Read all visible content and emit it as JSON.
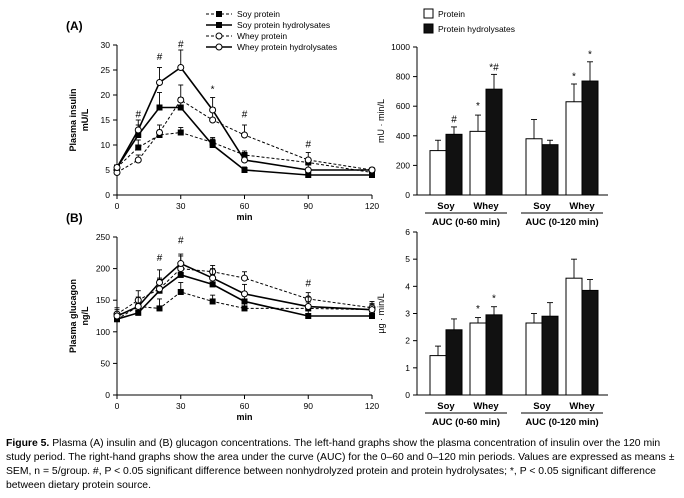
{
  "caption": {
    "figure_label": "Figure 5.",
    "text": "Plasma (A) insulin and (B) glucagon concentrations. The left-hand graphs show the plasma concentration of insulin over the 120 min study period. The right-hand graphs show the area under the curve (AUC) for the 0–60 and 0–120 min periods. Values are expressed as means ± SEM, n = 5/group. #, P < 0.05 significant difference between nonhydrolyzed protein and protein hydrolysates; *, P < 0.05 significant difference between dietary protein source."
  },
  "chart_data": [
    {
      "id": "insulin_time",
      "panel_label": "(A)",
      "type": "line",
      "ylabel_lines": [
        "Plasma insulin",
        "mU/L"
      ],
      "xlabel": "min",
      "ylim": [
        0,
        30
      ],
      "yticks": [
        0,
        5,
        10,
        15,
        20,
        25,
        30
      ],
      "xlim": [
        0,
        120
      ],
      "xticks": [
        0,
        30,
        60,
        90,
        120
      ],
      "grid": false,
      "legend_position": "top-center",
      "series": [
        {
          "name": "Soy protein",
          "style": "dashed",
          "marker": "filled-square",
          "x": [
            0,
            10,
            20,
            30,
            45,
            60,
            90,
            120
          ],
          "y": [
            5.5,
            9.5,
            12,
            12.5,
            10.5,
            8,
            6.5,
            4.5
          ],
          "err": [
            0.5,
            1.5,
            1.0,
            1.0,
            1.0,
            0.8,
            0.8,
            0.5
          ]
        },
        {
          "name": "Soy protein hydrolysates",
          "style": "solid",
          "marker": "filled-square",
          "x": [
            0,
            10,
            20,
            30,
            45,
            60,
            90,
            120
          ],
          "y": [
            5.5,
            12,
            17.5,
            17.5,
            10,
            5,
            4,
            4
          ],
          "err": [
            0.5,
            2.0,
            3.0,
            2.0,
            1.2,
            0.6,
            0.6,
            0.5
          ]
        },
        {
          "name": "Whey protein",
          "style": "dashed",
          "marker": "open-circle",
          "x": [
            0,
            10,
            20,
            30,
            45,
            60,
            90,
            120
          ],
          "y": [
            4.5,
            7,
            12.5,
            19,
            15,
            12,
            7,
            5
          ],
          "err": [
            0.5,
            1.0,
            1.5,
            3.0,
            2.5,
            2.0,
            1.5,
            0.5
          ]
        },
        {
          "name": "Whey protein hydrolysates",
          "style": "solid",
          "marker": "open-circle",
          "x": [
            0,
            10,
            20,
            30,
            45,
            60,
            90,
            120
          ],
          "y": [
            5.5,
            13,
            22.5,
            25.5,
            17,
            7,
            5,
            5
          ],
          "err": [
            0.5,
            2.0,
            3.0,
            3.5,
            2.5,
            1.5,
            1.0,
            0.5
          ]
        }
      ],
      "annotations": [
        {
          "text": "#",
          "x": 10,
          "y": 15.5
        },
        {
          "text": "#",
          "x": 20,
          "y": 27
        },
        {
          "text": "#",
          "x": 30,
          "y": 29.5
        },
        {
          "text": "*",
          "x": 45,
          "y": 20.5
        },
        {
          "text": "#",
          "x": 60,
          "y": 15.5
        },
        {
          "text": "#",
          "x": 90,
          "y": 9.5
        }
      ]
    },
    {
      "id": "insulin_auc",
      "type": "bar",
      "ylabel": "mU · min/L",
      "ylim": [
        0,
        1000
      ],
      "yticks": [
        0,
        200,
        400,
        600,
        800,
        1000
      ],
      "legend_position": "top",
      "series_names": [
        "Protein",
        "Protein hydrolysates"
      ],
      "groups": [
        {
          "period": "AUC (0-60 min)",
          "source": "Soy",
          "values": [
            300,
            410
          ],
          "err": [
            70,
            50
          ]
        },
        {
          "period": "AUC (0-60 min)",
          "source": "Whey",
          "values": [
            430,
            715
          ],
          "err": [
            110,
            100
          ]
        },
        {
          "period": "AUC (0-120 min)",
          "source": "Soy",
          "values": [
            380,
            340
          ],
          "err": [
            130,
            30
          ]
        },
        {
          "period": "AUC (0-120 min)",
          "source": "Whey",
          "values": [
            630,
            770
          ],
          "err": [
            120,
            130
          ]
        }
      ],
      "annotations": [
        {
          "text": "#",
          "group": 0,
          "bar": 1,
          "y": 490
        },
        {
          "text": "*",
          "group": 1,
          "bar": 0,
          "y": 580
        },
        {
          "text": "*#",
          "group": 1,
          "bar": 1,
          "y": 840
        },
        {
          "text": "*",
          "group": 3,
          "bar": 0,
          "y": 780
        },
        {
          "text": "*",
          "group": 3,
          "bar": 1,
          "y": 930
        }
      ]
    },
    {
      "id": "glucagon_time",
      "panel_label": "(B)",
      "type": "line",
      "ylabel_lines": [
        "Plasma glucagon",
        "ng/L"
      ],
      "xlabel": "min",
      "ylim": [
        0,
        250
      ],
      "yticks": [
        0,
        50,
        100,
        150,
        200,
        250
      ],
      "xlim": [
        0,
        120
      ],
      "xticks": [
        0,
        30,
        60,
        90,
        120
      ],
      "grid": false,
      "series": [
        {
          "name": "Soy protein",
          "style": "dashed",
          "marker": "filled-square",
          "x": [
            0,
            10,
            20,
            30,
            45,
            60,
            90,
            120
          ],
          "y": [
            120,
            140,
            137,
            163,
            148,
            137,
            137,
            135
          ],
          "err": [
            10,
            10,
            15,
            15,
            10,
            10,
            10,
            8
          ]
        },
        {
          "name": "Soy protein hydrolysates",
          "style": "solid",
          "marker": "filled-square",
          "x": [
            0,
            10,
            20,
            30,
            45,
            60,
            90,
            120
          ],
          "y": [
            120,
            130,
            165,
            190,
            175,
            148,
            125,
            125
          ],
          "err": [
            10,
            15,
            20,
            15,
            15,
            15,
            10,
            10
          ]
        },
        {
          "name": "Whey protein",
          "style": "dashed",
          "marker": "open-circle",
          "x": [
            0,
            10,
            20,
            30,
            45,
            60,
            90,
            120
          ],
          "y": [
            128,
            150,
            168,
            200,
            195,
            185,
            152,
            138
          ],
          "err": [
            10,
            15,
            15,
            20,
            10,
            10,
            10,
            10
          ]
        },
        {
          "name": "Whey protein hydrolysates",
          "style": "solid",
          "marker": "open-circle",
          "x": [
            0,
            10,
            20,
            30,
            45,
            60,
            90,
            120
          ],
          "y": [
            125,
            140,
            178,
            208,
            185,
            160,
            140,
            135
          ],
          "err": [
            10,
            15,
            20,
            15,
            15,
            15,
            15,
            10
          ]
        }
      ],
      "annotations": [
        {
          "text": "#",
          "x": 20,
          "y": 212
        },
        {
          "text": "#",
          "x": 30,
          "y": 240
        },
        {
          "text": "#",
          "x": 90,
          "y": 172
        }
      ]
    },
    {
      "id": "glucagon_auc",
      "type": "bar",
      "ylabel": "µg · min/L",
      "ylim": [
        0,
        6
      ],
      "yticks": [
        0,
        1,
        2,
        3,
        4,
        5,
        6
      ],
      "series_names": [
        "Protein",
        "Protein hydrolysates"
      ],
      "groups": [
        {
          "period": "AUC (0-60 min)",
          "source": "Soy",
          "values": [
            1.45,
            2.4
          ],
          "err": [
            0.35,
            0.4
          ]
        },
        {
          "period": "AUC (0-60 min)",
          "source": "Whey",
          "values": [
            2.65,
            2.95
          ],
          "err": [
            0.2,
            0.3
          ]
        },
        {
          "period": "AUC (0-120 min)",
          "source": "Soy",
          "values": [
            2.65,
            2.9
          ],
          "err": [
            0.35,
            0.5
          ]
        },
        {
          "period": "AUC (0-120 min)",
          "source": "Whey",
          "values": [
            4.3,
            3.85
          ],
          "err": [
            0.7,
            0.4
          ]
        }
      ],
      "annotations": [
        {
          "text": "*",
          "group": 1,
          "bar": 0,
          "y": 3.05
        },
        {
          "text": "*",
          "group": 1,
          "bar": 1,
          "y": 3.45
        }
      ]
    }
  ]
}
